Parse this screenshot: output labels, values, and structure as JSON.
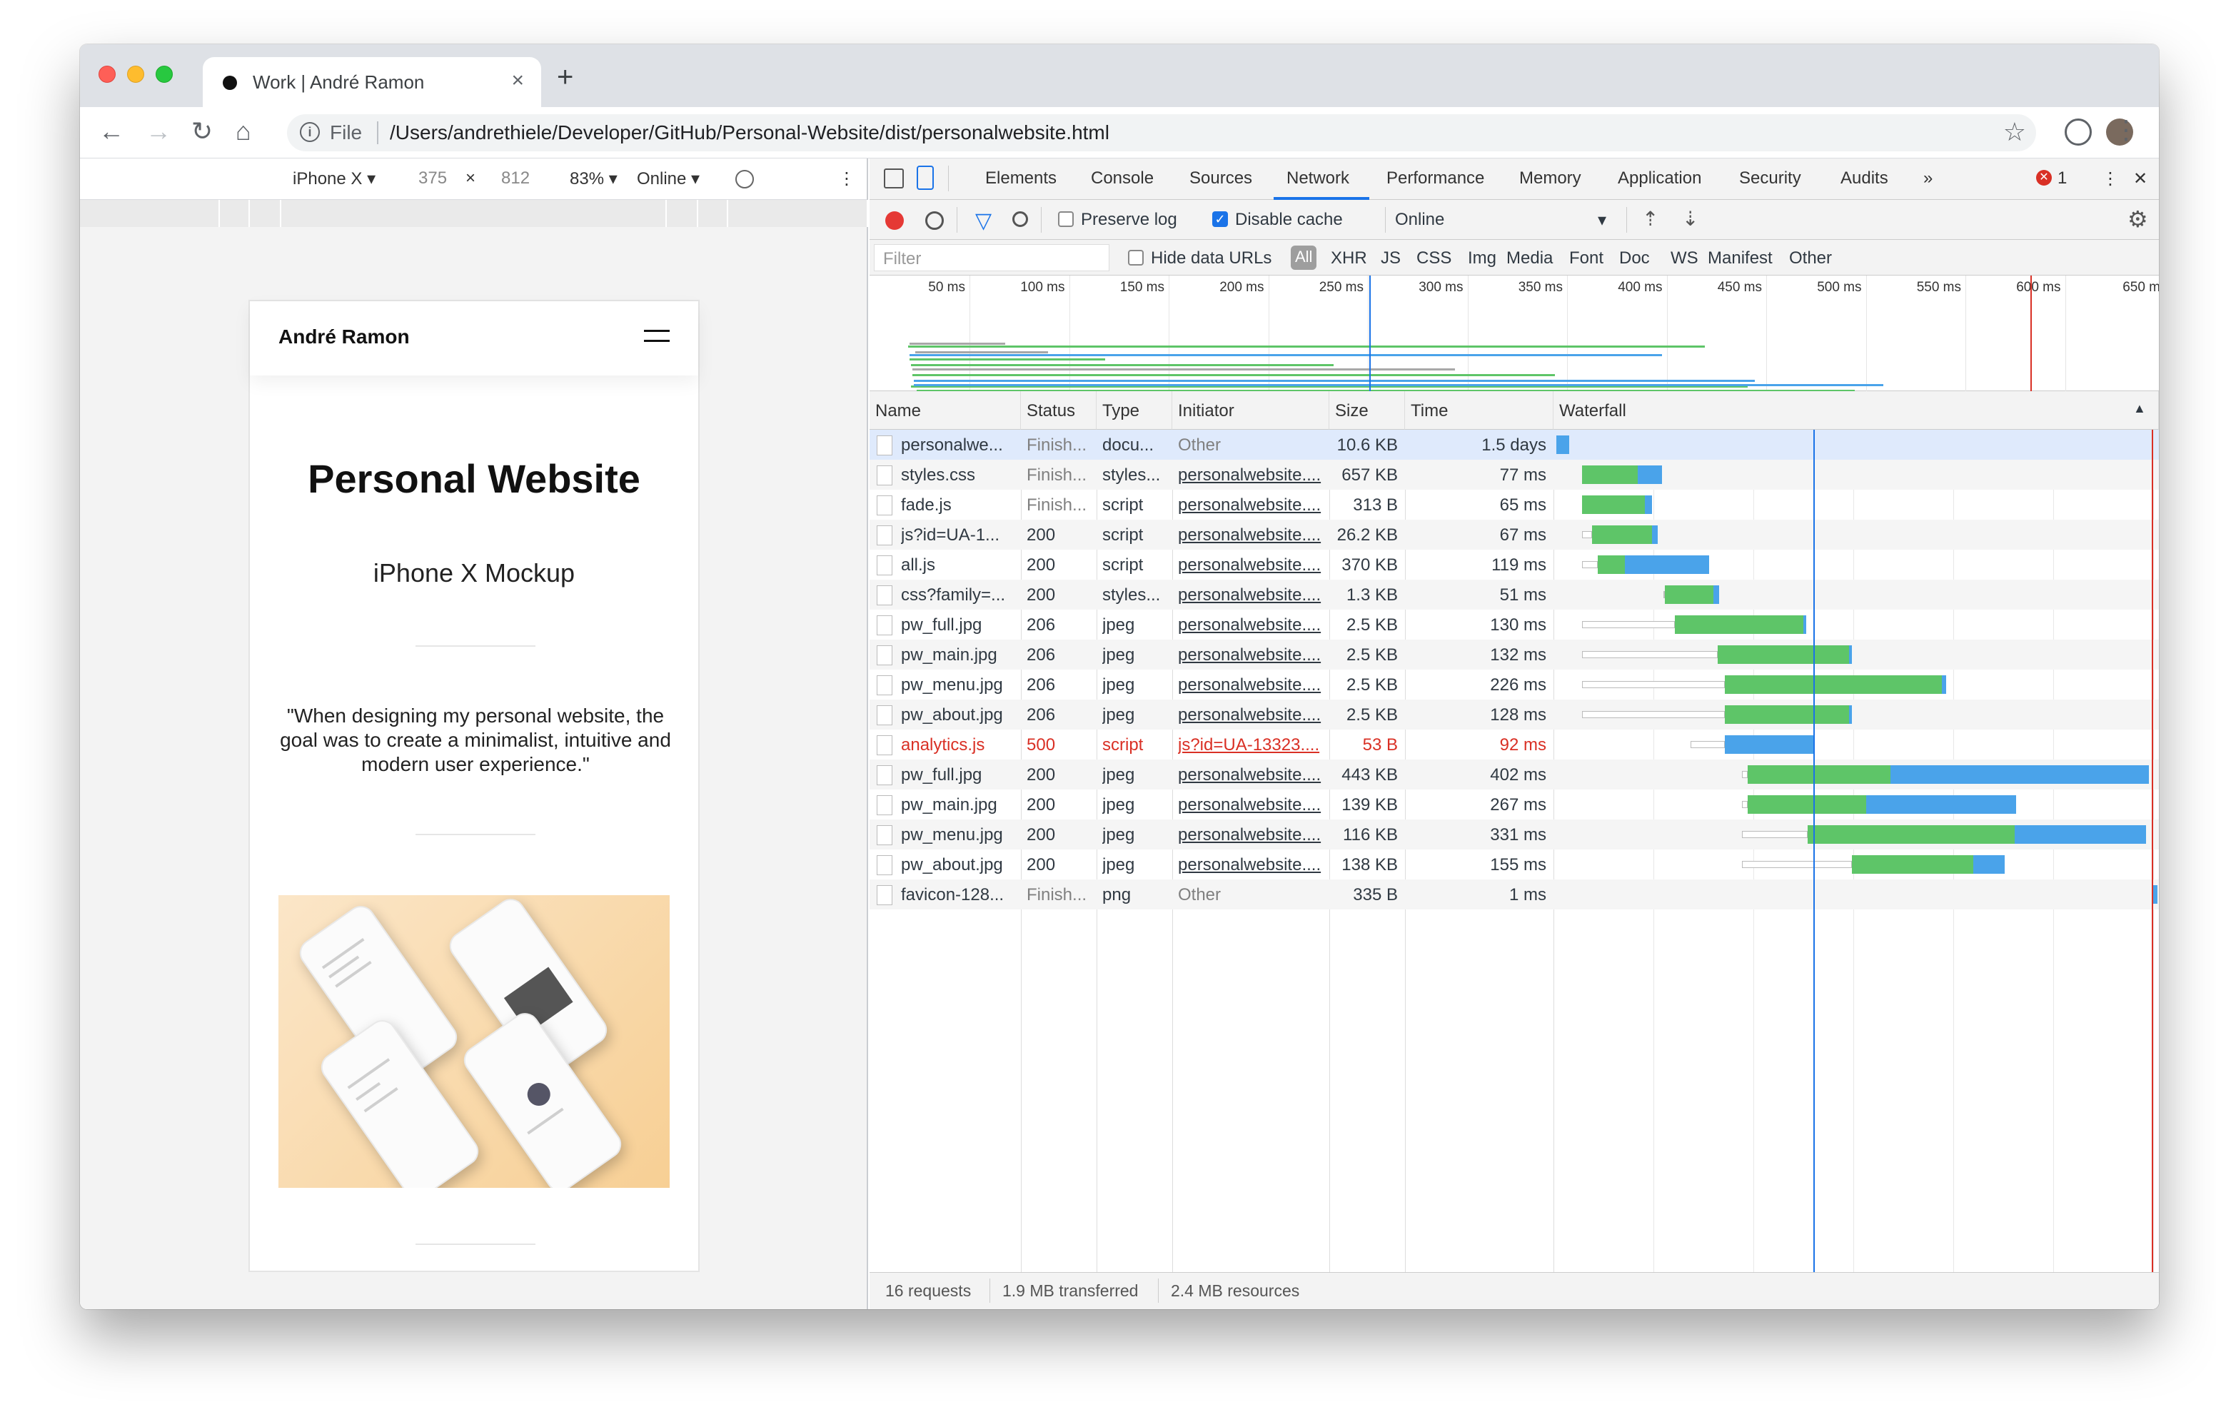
{
  "browser": {
    "tab_title": "Work | André Ramon",
    "tab_close": "×",
    "new_tab": "+",
    "nav": {
      "back": "←",
      "forward": "→",
      "reload": "↻",
      "home": "⌂"
    },
    "omnibox": {
      "scheme_label": "File",
      "url": "/Users/andrethiele/Developer/GitHub/Personal-Website/dist/personalwebsite.html"
    }
  },
  "device_toolbar": {
    "device": "iPhone X ▾",
    "width": "375",
    "times": "×",
    "height": "812",
    "zoom": "83% ▾",
    "network": "Online ▾",
    "more": "⋮"
  },
  "page": {
    "brand": "André Ramon",
    "title": "Personal Website",
    "subtitle": "iPhone X Mockup",
    "quote": "\"When designing my personal website, the goal was to create a minimalist, intuitive and modern user experience.\""
  },
  "devtools": {
    "tabs": [
      "Elements",
      "Console",
      "Sources",
      "Network",
      "Performance",
      "Memory",
      "Application",
      "Security",
      "Audits"
    ],
    "active_tab": "Network",
    "more_tabs": "»",
    "error_count": "1",
    "close": "✕",
    "controls": {
      "preserve_log": "Preserve log",
      "disable_cache": "Disable cache",
      "throttle": "Online",
      "throttle_caret": "▾"
    },
    "filter": {
      "placeholder": "Filter",
      "hide_data_urls": "Hide data URLs",
      "types": [
        "All",
        "XHR",
        "JS",
        "CSS",
        "Img",
        "Media",
        "Font",
        "Doc",
        "WS",
        "Manifest",
        "Other"
      ]
    },
    "overview_ticks": [
      "50 ms",
      "100 ms",
      "150 ms",
      "200 ms",
      "250 ms",
      "300 ms",
      "350 ms",
      "400 ms",
      "450 ms",
      "500 ms",
      "550 ms",
      "600 ms",
      "650 m"
    ],
    "columns": [
      "Name",
      "Status",
      "Type",
      "Initiator",
      "Size",
      "Time",
      "Waterfall"
    ],
    "sort_indicator": "▲",
    "rows": [
      {
        "name": "personalwe...",
        "status": "Finish...",
        "type": "docu...",
        "initiator": "Other",
        "size": "10.6 KB",
        "time": "1.5 days"
      },
      {
        "name": "styles.css",
        "status": "Finish...",
        "type": "styles...",
        "initiator": "personalwebsite....",
        "size": "657 KB",
        "time": "77 ms"
      },
      {
        "name": "fade.js",
        "status": "Finish...",
        "type": "script",
        "initiator": "personalwebsite....",
        "size": "313 B",
        "time": "65 ms"
      },
      {
        "name": "js?id=UA-1...",
        "status": "200",
        "type": "script",
        "initiator": "personalwebsite....",
        "size": "26.2 KB",
        "time": "67 ms"
      },
      {
        "name": "all.js",
        "status": "200",
        "type": "script",
        "initiator": "personalwebsite....",
        "size": "370 KB",
        "time": "119 ms"
      },
      {
        "name": "css?family=...",
        "status": "200",
        "type": "styles...",
        "initiator": "personalwebsite....",
        "size": "1.3 KB",
        "time": "51 ms"
      },
      {
        "name": "pw_full.jpg",
        "status": "206",
        "type": "jpeg",
        "initiator": "personalwebsite....",
        "size": "2.5 KB",
        "time": "130 ms"
      },
      {
        "name": "pw_main.jpg",
        "status": "206",
        "type": "jpeg",
        "initiator": "personalwebsite....",
        "size": "2.5 KB",
        "time": "132 ms"
      },
      {
        "name": "pw_menu.jpg",
        "status": "206",
        "type": "jpeg",
        "initiator": "personalwebsite....",
        "size": "2.5 KB",
        "time": "226 ms"
      },
      {
        "name": "pw_about.jpg",
        "status": "206",
        "type": "jpeg",
        "initiator": "personalwebsite....",
        "size": "2.5 KB",
        "time": "128 ms"
      },
      {
        "name": "analytics.js",
        "status": "500",
        "type": "script",
        "initiator": "js?id=UA-13323....",
        "size": "53 B",
        "time": "92 ms"
      },
      {
        "name": "pw_full.jpg",
        "status": "200",
        "type": "jpeg",
        "initiator": "personalwebsite....",
        "size": "443 KB",
        "time": "402 ms"
      },
      {
        "name": "pw_main.jpg",
        "status": "200",
        "type": "jpeg",
        "initiator": "personalwebsite....",
        "size": "139 KB",
        "time": "267 ms"
      },
      {
        "name": "pw_menu.jpg",
        "status": "200",
        "type": "jpeg",
        "initiator": "personalwebsite....",
        "size": "116 KB",
        "time": "331 ms"
      },
      {
        "name": "pw_about.jpg",
        "status": "200",
        "type": "jpeg",
        "initiator": "personalwebsite....",
        "size": "138 KB",
        "time": "155 ms"
      },
      {
        "name": "favicon-128...",
        "status": "Finish...",
        "type": "png",
        "initiator": "Other",
        "size": "335 B",
        "time": "1 ms"
      }
    ],
    "summary": {
      "requests": "16 requests",
      "transferred": "1.9 MB transferred",
      "resources": "2.4 MB resources"
    }
  },
  "colors": {
    "waiting": "#5ec568",
    "download": "#4aa3ea",
    "queue": "#a8a8a8",
    "error": "#d93025",
    "record": "#e53935"
  }
}
